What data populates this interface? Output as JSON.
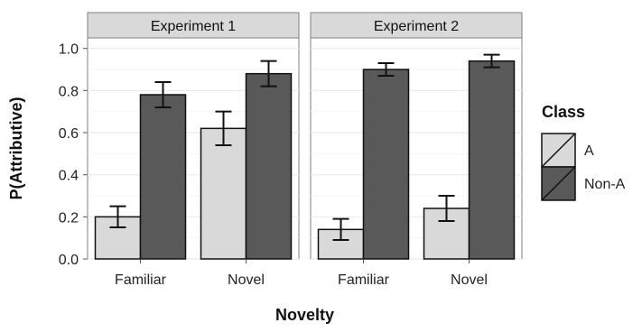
{
  "chart_data": {
    "type": "bar",
    "xlabel": "Novelty",
    "ylabel": "P(Attributive)",
    "ylim": [
      0,
      1.05
    ],
    "yticks": [
      0.0,
      0.2,
      0.4,
      0.6,
      0.8,
      1.0
    ],
    "ytick_labels": [
      "0.0",
      "0.2",
      "0.4",
      "0.6",
      "0.8",
      "1.0"
    ],
    "categories": [
      "Familiar",
      "Novel"
    ],
    "legend": {
      "title": "Class",
      "placement": "right",
      "entries": [
        {
          "name": "A",
          "color": "#d9d9d9"
        },
        {
          "name": "Non-A",
          "color": "#595959"
        }
      ]
    },
    "grid": true,
    "panels": [
      {
        "title": "Experiment 1",
        "series": [
          {
            "name": "A",
            "values": [
              0.2,
              0.62
            ],
            "err_low": [
              0.15,
              0.54
            ],
            "err_high": [
              0.25,
              0.7
            ]
          },
          {
            "name": "Non-A",
            "values": [
              0.78,
              0.88
            ],
            "err_low": [
              0.72,
              0.82
            ],
            "err_high": [
              0.84,
              0.94
            ]
          }
        ]
      },
      {
        "title": "Experiment 2",
        "series": [
          {
            "name": "A",
            "values": [
              0.14,
              0.24
            ],
            "err_low": [
              0.09,
              0.18
            ],
            "err_high": [
              0.19,
              0.3
            ]
          },
          {
            "name": "Non-A",
            "values": [
              0.9,
              0.94
            ],
            "err_low": [
              0.87,
              0.91
            ],
            "err_high": [
              0.93,
              0.97
            ]
          }
        ]
      }
    ]
  }
}
